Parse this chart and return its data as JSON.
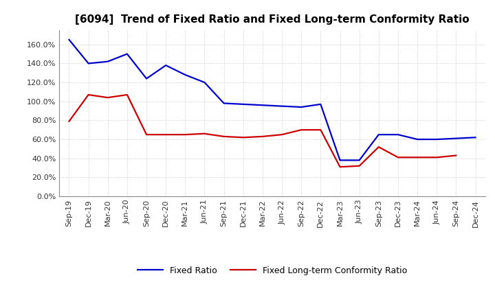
{
  "title": "[6094]  Trend of Fixed Ratio and Fixed Long-term Conformity Ratio",
  "x_labels": [
    "Sep-19",
    "Dec-19",
    "Mar-20",
    "Jun-20",
    "Sep-20",
    "Dec-20",
    "Mar-21",
    "Jun-21",
    "Sep-21",
    "Dec-21",
    "Mar-22",
    "Jun-22",
    "Sep-22",
    "Dec-22",
    "Mar-23",
    "Jun-23",
    "Sep-23",
    "Dec-23",
    "Mar-24",
    "Jun-24",
    "Sep-24",
    "Dec-24"
  ],
  "fixed_ratio": [
    165.0,
    140.0,
    142.0,
    150.0,
    124.0,
    138.0,
    128.0,
    120.0,
    98.0,
    97.0,
    96.0,
    95.0,
    94.0,
    97.0,
    38.0,
    38.0,
    65.0,
    65.0,
    60.0,
    60.0,
    61.0,
    62.0
  ],
  "fixed_lt_ratio": [
    79.0,
    107.0,
    104.0,
    107.0,
    65.0,
    65.0,
    65.0,
    66.0,
    63.0,
    62.0,
    63.0,
    65.0,
    70.0,
    70.0,
    31.0,
    32.0,
    52.0,
    41.0,
    41.0,
    41.0,
    43.0,
    null
  ],
  "fixed_ratio_color": "#0000cc",
  "fixed_lt_ratio_color": "#cc0000",
  "ylim": [
    0,
    175
  ],
  "yticks": [
    0,
    20,
    40,
    60,
    80,
    100,
    120,
    140,
    160
  ],
  "background_color": "#ffffff",
  "grid_color": "#aaaaaa",
  "legend_fixed_ratio": "Fixed Ratio",
  "legend_fixed_lt_ratio": "Fixed Long-term Conformity Ratio",
  "title_fontsize": 11,
  "tick_fontsize": 8,
  "legend_fontsize": 9
}
